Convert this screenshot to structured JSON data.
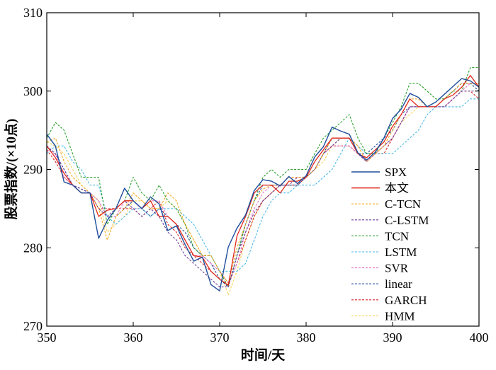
{
  "chart_data": {
    "type": "line",
    "title": "",
    "xlabel": "时间/天",
    "ylabel": "股票指数/(×10点)",
    "xlim": [
      350,
      400
    ],
    "ylim": [
      270,
      310
    ],
    "xticks": [
      "350",
      "360",
      "370",
      "380",
      "390",
      "400"
    ],
    "yticks": [
      "270",
      "280",
      "290",
      "300",
      "310"
    ],
    "grid": false,
    "legend_position": "right",
    "x": [
      350,
      351,
      352,
      353,
      354,
      355,
      356,
      357,
      358,
      359,
      360,
      361,
      362,
      363,
      364,
      365,
      366,
      367,
      368,
      369,
      370,
      371,
      372,
      373,
      374,
      375,
      376,
      377,
      378,
      379,
      380,
      381,
      382,
      383,
      384,
      385,
      386,
      387,
      388,
      389,
      390,
      391,
      392,
      393,
      394,
      395,
      396,
      397,
      398,
      399,
      400
    ],
    "series": [
      {
        "name": "SPX",
        "color": "#1f4e9c",
        "dash": "",
        "width": 1.4,
        "values": [
          294.5,
          293,
          288.4,
          288,
          287,
          287,
          281.2,
          283.5,
          285,
          287.6,
          286,
          285,
          286.5,
          285.6,
          282.2,
          282.8,
          280.4,
          278.3,
          278.8,
          275.3,
          274.5,
          280.1,
          282.5,
          284.2,
          287.3,
          288.7,
          288.5,
          287.9,
          289.1,
          288.2,
          289.2,
          291.6,
          292.9,
          295.4,
          294.9,
          294.5,
          292.1,
          291.2,
          292.2,
          294,
          296.5,
          297.7,
          299.7,
          299.2,
          298,
          298.6,
          299.6,
          300.6,
          301.6,
          301.3,
          300.5
        ]
      },
      {
        "name": "本文",
        "color": "#e0281c",
        "dash": "",
        "width": 1.3,
        "values": [
          293,
          291.5,
          289.5,
          288,
          287,
          287,
          284,
          284.8,
          285,
          286,
          286,
          285,
          286,
          284,
          284,
          283,
          281,
          279,
          278.8,
          277,
          276,
          275.2,
          281.5,
          284,
          287,
          288,
          288,
          287,
          288.5,
          288.5,
          289,
          291,
          292.5,
          294,
          294,
          294,
          292,
          291.5,
          292.5,
          293.5,
          295.5,
          297,
          299,
          298,
          298,
          298,
          299,
          299.5,
          300.5,
          302,
          300.5
        ]
      },
      {
        "name": "C-TCN",
        "color": "#f5a623",
        "dash": "3,2",
        "width": 1.1,
        "values": [
          293.5,
          294,
          291,
          289,
          288,
          287,
          285,
          281,
          284,
          285,
          287,
          286,
          285,
          285,
          287,
          286,
          283,
          281,
          279,
          279,
          277,
          275.5,
          280,
          283,
          286,
          287.5,
          288,
          288,
          289,
          289,
          289,
          290,
          292,
          294,
          294,
          294,
          293,
          291,
          292,
          293,
          295,
          297,
          299,
          299,
          298,
          298,
          299,
          300,
          301,
          301,
          301
        ]
      },
      {
        "name": "C-LSTM",
        "color": "#6a3d9a",
        "dash": "3,2",
        "width": 1.1,
        "values": [
          293,
          292,
          290,
          288,
          287.5,
          287,
          285,
          284,
          285,
          286,
          285,
          284,
          285,
          284,
          282,
          281,
          279,
          278,
          277,
          276,
          275,
          275,
          279,
          282,
          284.5,
          286,
          287,
          288,
          288,
          289,
          289,
          290,
          292,
          293,
          294,
          294,
          292,
          291,
          292,
          293,
          294,
          296,
          298,
          298,
          298,
          298,
          298,
          299,
          300,
          300,
          300
        ]
      },
      {
        "name": "TCN",
        "color": "#2ca02c",
        "dash": "3,2",
        "width": 1.1,
        "values": [
          294,
          296,
          295,
          292,
          289,
          289,
          289,
          283,
          285,
          286,
          289,
          287,
          286,
          288,
          286,
          285,
          283,
          280,
          279,
          279,
          277,
          275,
          279,
          283,
          286,
          289,
          290,
          289,
          290,
          290,
          290,
          292,
          294,
          295,
          296,
          297,
          294,
          292,
          292,
          294,
          296,
          298,
          301,
          301,
          300,
          299,
          299,
          300,
          300,
          303,
          303
        ]
      },
      {
        "name": "LSTM",
        "color": "#4bb8e8",
        "dash": "3,2",
        "width": 1.1,
        "values": [
          292,
          293,
          293,
          291,
          290,
          288,
          288,
          284,
          283,
          284,
          285,
          285,
          284,
          285,
          285,
          285,
          284,
          283,
          281,
          279,
          277,
          277,
          277,
          278,
          281,
          284,
          286,
          287,
          287,
          288,
          288,
          288,
          289,
          290,
          292,
          294,
          293,
          292,
          292,
          292,
          292,
          293,
          294,
          295,
          297,
          298,
          298,
          298,
          298,
          299,
          299
        ]
      },
      {
        "name": "SVR",
        "color": "#e377c2",
        "dash": "3,2",
        "width": 1.1,
        "values": [
          292.5,
          292,
          289,
          288,
          287,
          287,
          286,
          284,
          284,
          286,
          285,
          285,
          286,
          286,
          284,
          283,
          281,
          279,
          279,
          278,
          277,
          275.5,
          278,
          282,
          285,
          287,
          288,
          288,
          289,
          289,
          289,
          290,
          292,
          293,
          293,
          293,
          292,
          291,
          292,
          293,
          294,
          296,
          298,
          298,
          298,
          298,
          298,
          299,
          300,
          301,
          301
        ]
      },
      {
        "name": "linear",
        "color": "#1f4e9c",
        "dash": "3,2",
        "width": 1.1,
        "values": [
          293,
          292,
          290,
          288,
          287.5,
          287,
          286,
          284,
          284,
          285,
          286,
          285,
          284,
          285,
          284,
          283,
          282,
          280,
          279,
          278,
          276,
          275,
          279,
          283,
          286,
          288,
          288,
          288,
          288,
          288,
          289,
          290,
          292,
          294,
          294,
          294,
          292,
          292,
          293,
          294,
          295,
          297,
          298,
          298,
          298,
          298,
          299,
          300,
          301,
          301,
          300
        ]
      },
      {
        "name": "GARCH",
        "color": "#d62728",
        "dash": "3,2",
        "width": 1.1,
        "values": [
          292.5,
          291,
          289,
          288,
          287,
          287,
          285,
          285,
          285,
          285,
          285,
          284,
          285,
          286,
          283,
          282,
          280,
          279,
          278,
          277,
          276,
          275.3,
          278,
          281,
          284,
          286,
          287,
          288,
          288,
          288,
          289,
          290,
          292,
          293,
          293,
          293,
          292,
          291,
          292,
          292,
          294,
          296,
          298,
          298,
          298,
          298,
          298,
          299,
          300,
          300,
          299
        ]
      },
      {
        "name": "HMM",
        "color": "#f7d35a",
        "dash": "3,2",
        "width": 1.1,
        "values": [
          293.5,
          293,
          292,
          290,
          288,
          287,
          286,
          282,
          283,
          284,
          286,
          286,
          285,
          285,
          286,
          285,
          283,
          281,
          279,
          279,
          277,
          274,
          277,
          281,
          284,
          286,
          287,
          288,
          288,
          289,
          289,
          290,
          291,
          293,
          294,
          294,
          293,
          292,
          292,
          293,
          294,
          296,
          297,
          298,
          298,
          298,
          299,
          300,
          301,
          301,
          301
        ]
      }
    ]
  }
}
